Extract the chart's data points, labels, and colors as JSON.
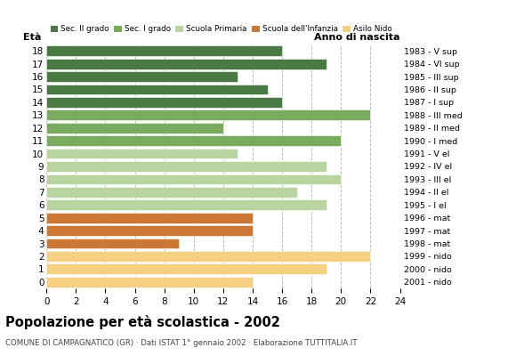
{
  "ages": [
    18,
    17,
    16,
    15,
    14,
    13,
    12,
    11,
    10,
    9,
    8,
    7,
    6,
    5,
    4,
    3,
    2,
    1,
    0
  ],
  "values": [
    16,
    19,
    13,
    15,
    16,
    22,
    12,
    20,
    13,
    19,
    20,
    17,
    19,
    14,
    14,
    9,
    22,
    19,
    14
  ],
  "right_labels": [
    "1983 - V sup",
    "1984 - VI sup",
    "1985 - III sup",
    "1986 - II sup",
    "1987 - I sup",
    "1988 - III med",
    "1989 - II med",
    "1990 - I med",
    "1991 - V el",
    "1992 - IV el",
    "1993 - III el",
    "1994 - II el",
    "1995 - I el",
    "1996 - mat",
    "1997 - mat",
    "1998 - mat",
    "1999 - nido",
    "2000 - nido",
    "2001 - nido"
  ],
  "color_map": {
    "18": "#4a7a44",
    "17": "#4a7a44",
    "16": "#4a7a44",
    "15": "#4a7a44",
    "14": "#4a7a44",
    "13": "#7aaa5e",
    "12": "#7aaa5e",
    "11": "#7aaa5e",
    "10": "#b8d4a0",
    "9": "#b8d4a0",
    "8": "#b8d4a0",
    "7": "#b8d4a0",
    "6": "#b8d4a0",
    "5": "#cc7733",
    "4": "#cc7733",
    "3": "#cc7733",
    "2": "#f5d080",
    "1": "#f5d080",
    "0": "#f5d080"
  },
  "xlim": [
    0,
    24
  ],
  "xticks": [
    0,
    2,
    4,
    6,
    8,
    10,
    12,
    14,
    16,
    18,
    20,
    22,
    24
  ],
  "title": "Popolazione per età scolastica - 2002",
  "subtitle": "COMUNE DI CAMPAGNATICO (GR) · Dati ISTAT 1° gennaio 2002 · Elaborazione TUTTITALIA.IT",
  "ylabel_left": "Età",
  "ylabel_right": "Anno di nascita",
  "bg_color": "#ffffff",
  "bar_height": 0.82,
  "grid_color": "#bbbbbb",
  "legend_colors": {
    "Sec. II grado": "#4a7a44",
    "Sec. I grado": "#7aaa5e",
    "Scuola Primaria": "#b8d4a0",
    "Scuola dell'Infanzia": "#cc7733",
    "Asilo Nido": "#f5d080"
  }
}
